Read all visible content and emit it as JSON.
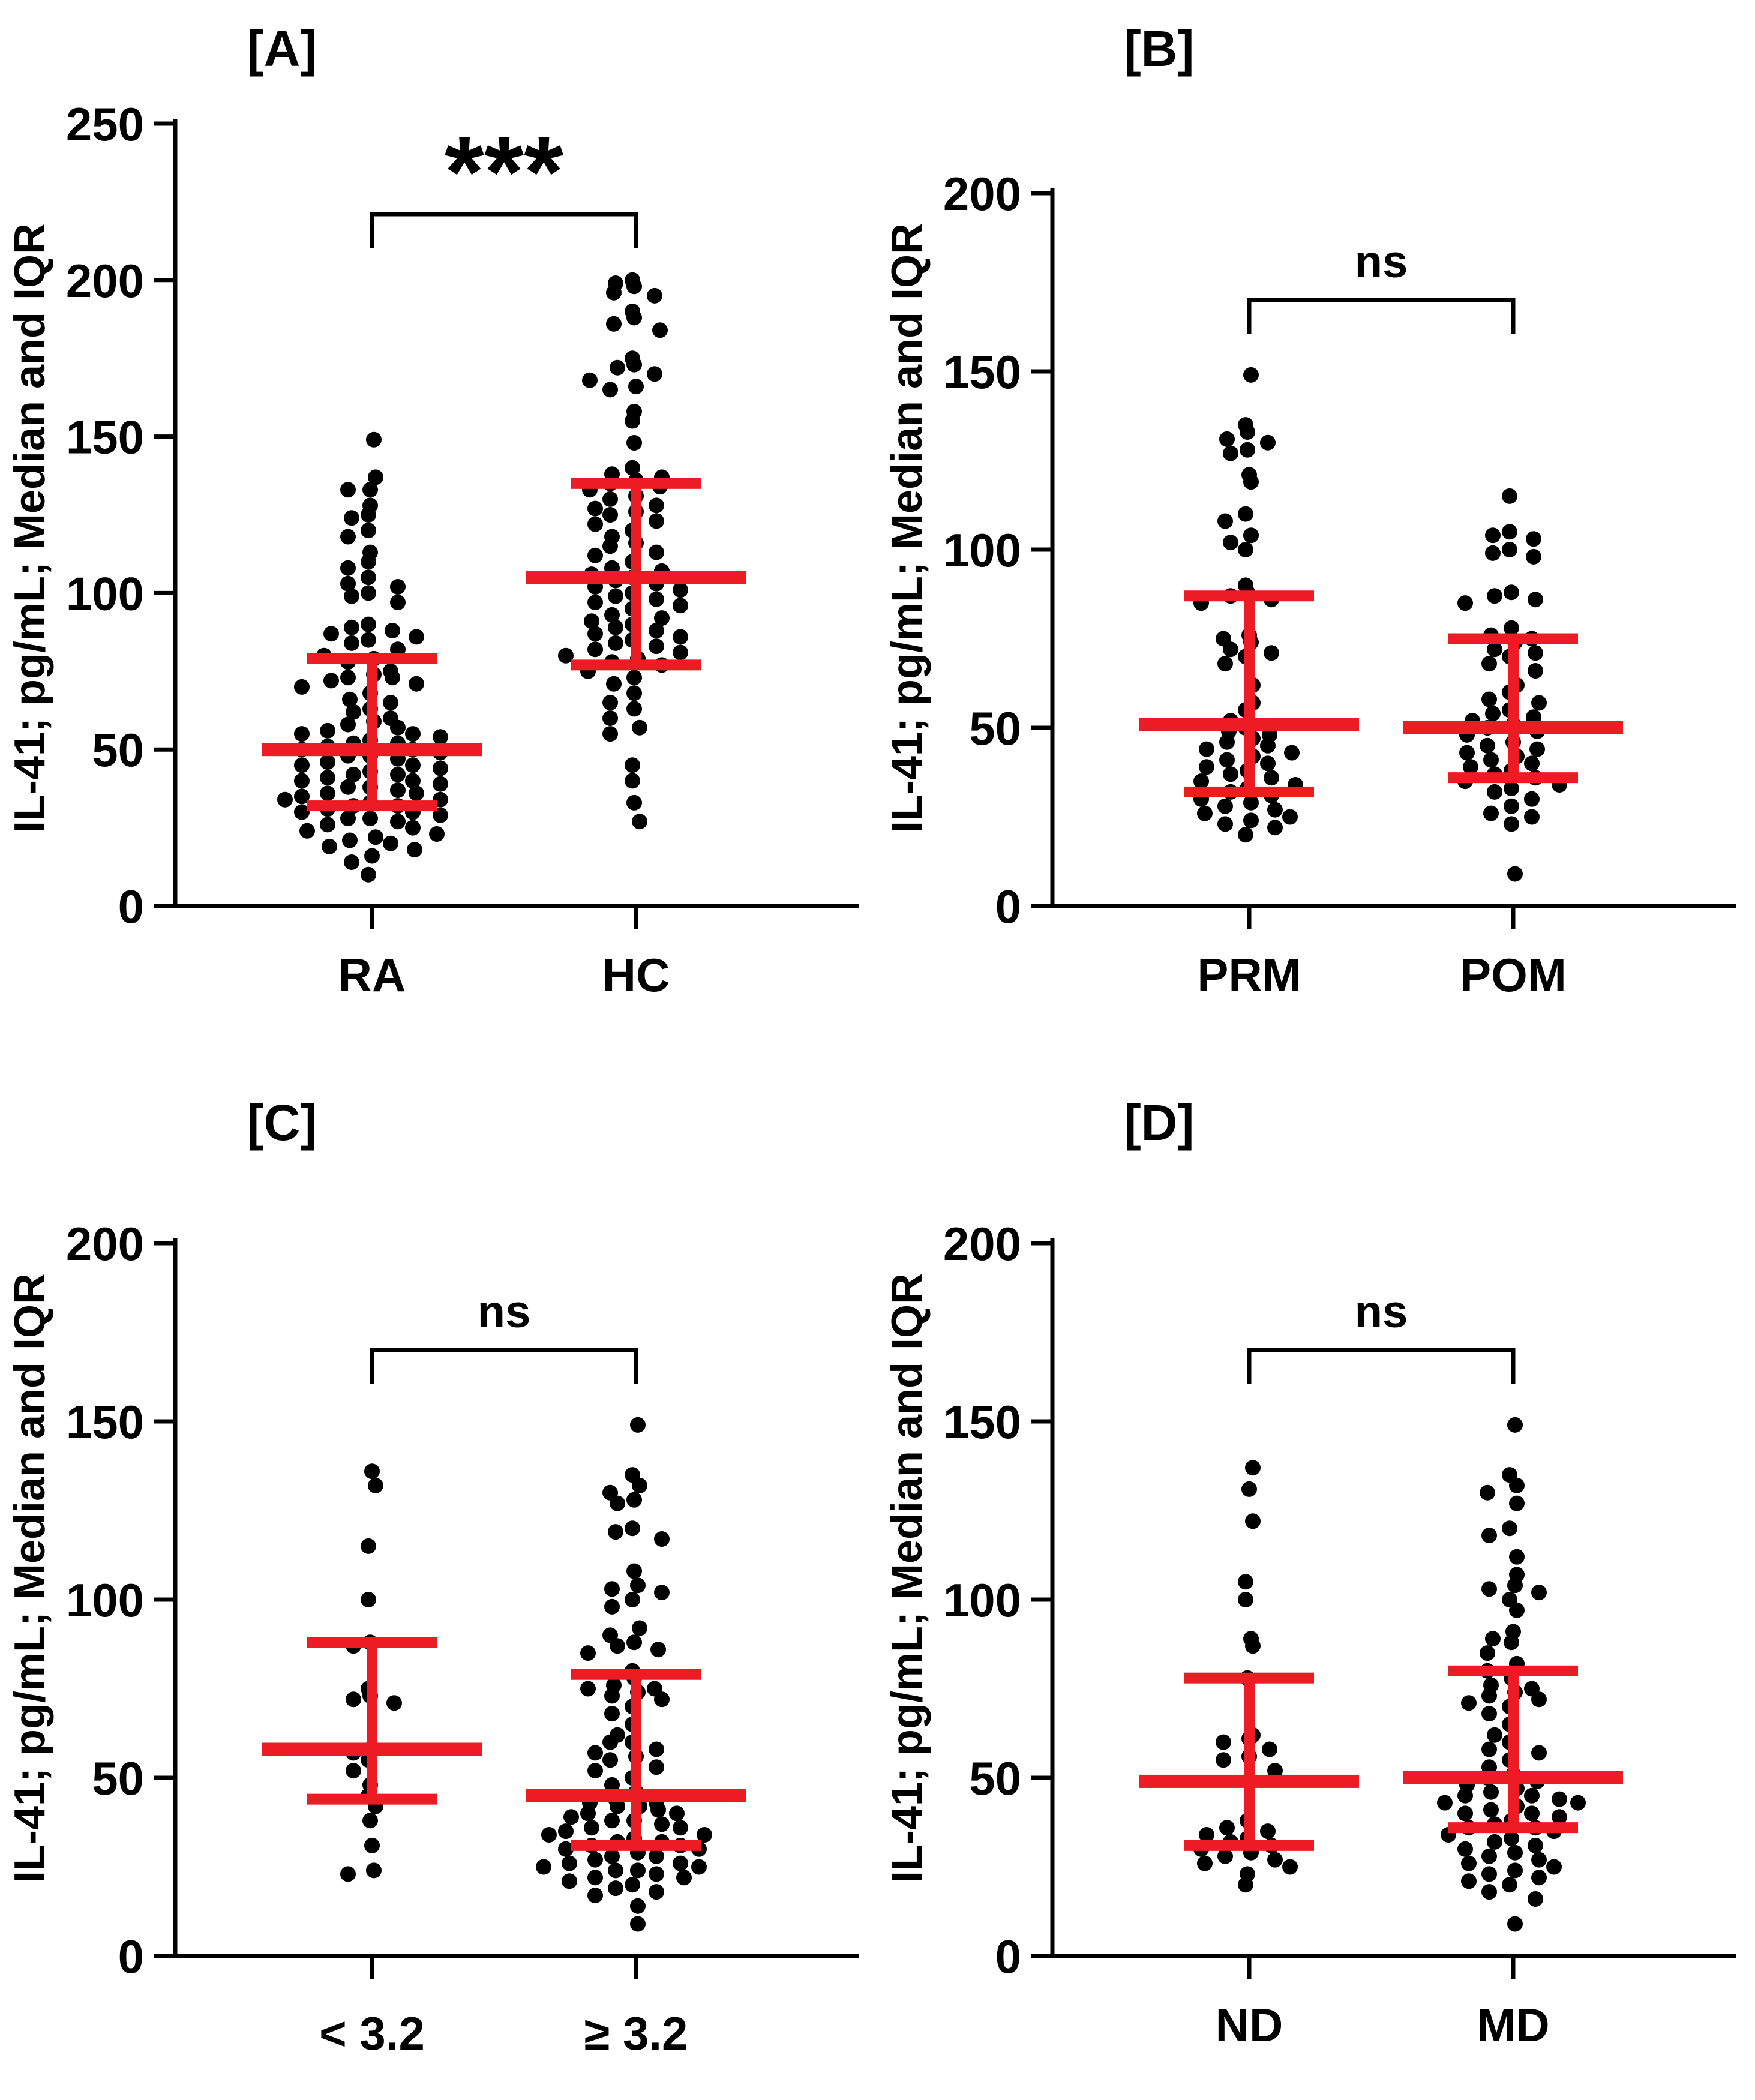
{
  "figure": {
    "ylabel": "IL-41; pg/mL; Median and IQR",
    "dot_color": "#000000",
    "error_bar_color": "#ED1C24",
    "axis_color": "#000000",
    "background": "#FFFFFF"
  },
  "chart_data": {
    "type": "scatter",
    "description": "Four dot plots of IL-41 (pg/mL) with red median and IQR error bars",
    "panels": [
      {
        "id": "A",
        "title": "[A]",
        "significance": "***",
        "ylabel": "IL-41; pg/mL; Median and IQR",
        "ylim": [
          0,
          250
        ],
        "yticks": [
          0,
          50,
          100,
          150,
          200,
          250
        ],
        "groups": [
          {
            "label": "RA",
            "median": 50,
            "q1": 32,
            "q3": 79,
            "values": [
              149,
              137,
              133,
              133,
              128,
              125,
              124,
              120,
              118,
              113,
              110,
              108,
              105,
              103,
              102,
              100,
              99,
              97,
              90,
              89,
              88,
              87,
              86,
              85,
              84,
              82,
              80,
              79,
              78,
              75,
              74,
              73,
              73,
              72,
              71,
              70,
              68,
              66,
              65,
              63,
              62,
              60,
              59,
              58,
              57,
              56,
              55,
              55,
              54,
              53,
              52,
              52,
              51,
              50,
              50,
              49,
              48,
              48,
              47,
              46,
              45,
              45,
              44,
              43,
              42,
              42,
              41,
              40,
              40,
              39,
              38,
              38,
              37,
              36,
              36,
              35,
              34,
              34,
              33,
              32,
              32,
              31,
              30,
              30,
              29,
              28,
              28,
              27,
              26,
              25,
              24,
              23,
              22,
              21,
              20,
              19,
              18,
              16,
              14,
              10
            ]
          },
          {
            "label": "HC",
            "median": 105,
            "q1": 77,
            "q3": 135,
            "values": [
              200,
              199,
              198,
              196,
              195,
              190,
              188,
              186,
              184,
              175,
              173,
              172,
              170,
              168,
              166,
              165,
              158,
              155,
              148,
              140,
              138,
              137,
              136,
              135,
              134,
              133,
              131,
              130,
              128,
              127,
              126,
              125,
              123,
              122,
              120,
              118,
              116,
              115,
              113,
              112,
              110,
              108,
              107,
              106,
              105,
              104,
              103,
              102,
              101,
              100,
              99,
              98,
              97,
              96,
              95,
              93,
              92,
              91,
              90,
              89,
              88,
              87,
              86,
              85,
              84,
              83,
              82,
              81,
              80,
              79,
              78,
              77,
              75,
              73,
              71,
              68,
              65,
              63,
              60,
              57,
              55,
              45,
              40,
              33,
              27
            ]
          }
        ]
      },
      {
        "id": "B",
        "title": "[B]",
        "significance": "ns",
        "ylabel": "IL-41; pg/mL; Median and IQR",
        "ylim": [
          0,
          200
        ],
        "yticks": [
          0,
          50,
          100,
          150,
          200
        ],
        "groups": [
          {
            "label": "PRM",
            "median": 51,
            "q1": 32,
            "q3": 87,
            "values": [
              149,
              135,
              133,
              131,
              130,
              128,
              127,
              121,
              119,
              110,
              108,
              104,
              102,
              100,
              90,
              88,
              87,
              86,
              85,
              76,
              75,
              74,
              72,
              71,
              70,
              68,
              62,
              57,
              55,
              52,
              50,
              49,
              48,
              47,
              46,
              45,
              44,
              43,
              42,
              41,
              40,
              39,
              38,
              37,
              36,
              35,
              34,
              33,
              32,
              31,
              30,
              29,
              28,
              27,
              26,
              25,
              24,
              23,
              22,
              20
            ]
          },
          {
            "label": "POM",
            "median": 50,
            "q1": 36,
            "q3": 75,
            "values": [
              115,
              105,
              104,
              103,
              100,
              99,
              98,
              88,
              87,
              86,
              85,
              78,
              76,
              75,
              74,
              72,
              71,
              70,
              68,
              66,
              62,
              60,
              58,
              57,
              55,
              54,
              53,
              52,
              51,
              50,
              49,
              48,
              46,
              45,
              44,
              43,
              42,
              41,
              40,
              39,
              38,
              37,
              36,
              35,
              34,
              33,
              32,
              30,
              28,
              26,
              25,
              23,
              9
            ]
          }
        ]
      },
      {
        "id": "C",
        "title": "[C]",
        "significance": "ns",
        "ylabel": "IL-41; pg/mL; Median and IQR",
        "ylim": [
          0,
          200
        ],
        "yticks": [
          0,
          50,
          100,
          150,
          200
        ],
        "groups": [
          {
            "label": "< 3.2",
            "median": 58,
            "q1": 44,
            "q3": 88,
            "values": [
              136,
              132,
              115,
              100,
              88,
              87,
              75,
              73,
              72,
              71,
              58,
              57,
              55,
              52,
              48,
              45,
              42,
              38,
              31,
              24,
              23
            ]
          },
          {
            "label": "≥ 3.2",
            "median": 45,
            "q1": 31,
            "q3": 79,
            "values": [
              149,
              135,
              132,
              130,
              128,
              127,
              120,
              119,
              117,
              108,
              104,
              103,
              102,
              100,
              98,
              92,
              90,
              88,
              87,
              86,
              85,
              80,
              78,
              76,
              75,
              75,
              74,
              73,
              72,
              70,
              68,
              65,
              62,
              60,
              60,
              58,
              57,
              56,
              55,
              53,
              52,
              50,
              48,
              46,
              44,
              43,
              43,
              42,
              42,
              41,
              40,
              40,
              39,
              38,
              38,
              37,
              36,
              36,
              35,
              34,
              34,
              33,
              32,
              32,
              31,
              31,
              30,
              30,
              29,
              28,
              28,
              27,
              26,
              26,
              25,
              25,
              24,
              24,
              23,
              22,
              22,
              21,
              20,
              19,
              18,
              17,
              14,
              9
            ]
          }
        ]
      },
      {
        "id": "D",
        "title": "[D]",
        "significance": "ns",
        "ylabel": "IL-41; pg/mL; Median and IQR",
        "ylim": [
          0,
          200
        ],
        "yticks": [
          0,
          50,
          100,
          150,
          200
        ],
        "groups": [
          {
            "label": "ND",
            "median": 49,
            "q1": 31,
            "q3": 78,
            "values": [
              137,
              131,
              122,
              105,
              100,
              89,
              87,
              78,
              62,
              61,
              60,
              58,
              56,
              55,
              52,
              49,
              38,
              36,
              35,
              34,
              33,
              32,
              31,
              30,
              29,
              28,
              27,
              26,
              25,
              23,
              20
            ]
          },
          {
            "label": "MD",
            "median": 50,
            "q1": 36,
            "q3": 80,
            "values": [
              149,
              135,
              132,
              130,
              127,
              120,
              118,
              112,
              107,
              104,
              103,
              102,
              100,
              97,
              91,
              89,
              88,
              85,
              82,
              80,
              78,
              76,
              75,
              74,
              73,
              72,
              71,
              70,
              68,
              65,
              62,
              60,
              58,
              57,
              55,
              53,
              51,
              50,
              49,
              48,
              47,
              46,
              45,
              45,
              44,
              43,
              43,
              42,
              41,
              40,
              40,
              39,
              38,
              37,
              36,
              36,
              35,
              34,
              33,
              32,
              31,
              30,
              29,
              28,
              27,
              26,
              25,
              24,
              23,
              22,
              21,
              20,
              18,
              16,
              9
            ]
          }
        ]
      }
    ]
  }
}
